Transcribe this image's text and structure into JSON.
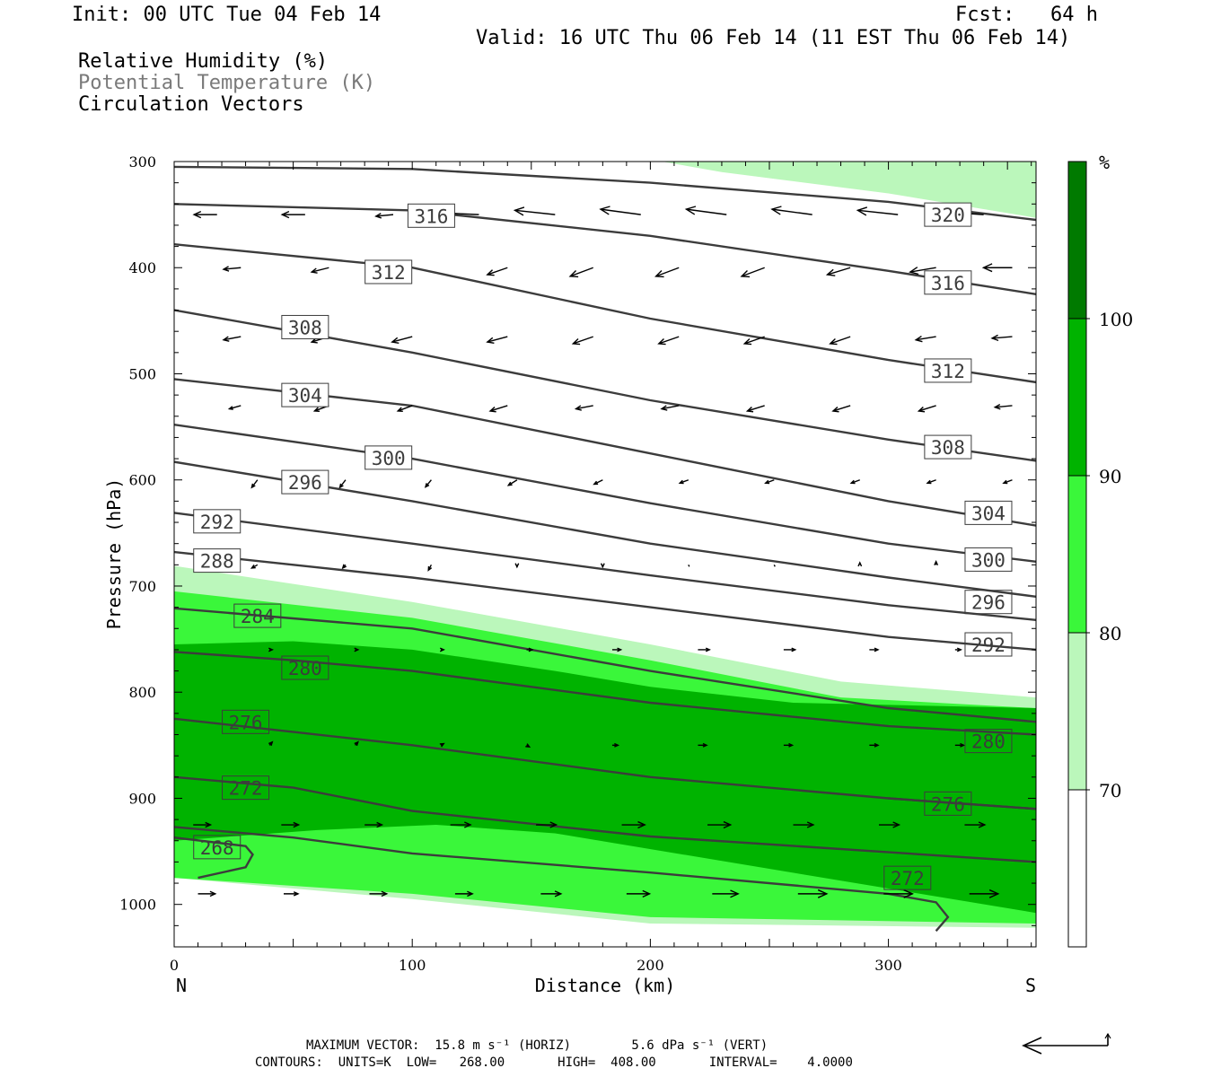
{
  "header": {
    "init": "Init: 00 UTC Tue 04 Feb 14",
    "fcst": "Fcst:   64 h",
    "valid": "Valid: 16 UTC Thu 06 Feb 14 (11 EST Thu 06 Feb 14)",
    "fields": [
      "Relative Humidity (%)",
      "Potential Temperature (K)",
      "Circulation Vectors"
    ]
  },
  "footer": {
    "max_vector": "MAXIMUM VECTOR:  15.8 m s⁻¹ (HORIZ)        5.6 dPa s⁻¹ (VERT)",
    "contours": "CONTOURS:  UNITS=K  LOW=   268.00       HIGH=  408.00       INTERVAL=    4.0000"
  },
  "chart_data": {
    "type": "cross-section",
    "xlabel": "Distance (km)",
    "ylabel": "Pressure (hPa)",
    "xlim": [
      0,
      362
    ],
    "ylim": [
      1040,
      300
    ],
    "x_ticks": [
      0,
      100,
      200,
      300
    ],
    "y_ticks": [
      300,
      400,
      500,
      600,
      700,
      800,
      900,
      1000
    ],
    "x_end_labels": {
      "left": "N",
      "right": "S"
    },
    "colorbar": {
      "unit": "%",
      "levels": [
        70,
        80,
        90,
        100
      ],
      "colors": [
        "#ffffff",
        "#bbf7bb",
        "#3af73a",
        "#00b300",
        "#007a00"
      ]
    },
    "rh_bands": [
      {
        "min_rh": 70,
        "color": "#bbf7bb",
        "top": [
          [
            0,
            681
          ],
          [
            100,
            715
          ],
          [
            200,
            755
          ],
          [
            280,
            790
          ],
          [
            362,
            805
          ]
        ],
        "bottom": [
          [
            0,
            975
          ],
          [
            100,
            995
          ],
          [
            200,
            1018
          ],
          [
            362,
            1022
          ]
        ],
        "upper_region": {
          "x": [
            205,
            362
          ],
          "top": 300,
          "bottom": [
            [
              205,
              300
            ],
            [
              230,
              310
            ],
            [
              300,
              330
            ],
            [
              362,
              353
            ]
          ]
        }
      },
      {
        "min_rh": 80,
        "color": "#3af73a",
        "top": [
          [
            0,
            705
          ],
          [
            100,
            730
          ],
          [
            200,
            770
          ],
          [
            280,
            805
          ],
          [
            362,
            815
          ]
        ],
        "bottom": [
          [
            0,
            975
          ],
          [
            100,
            990
          ],
          [
            200,
            1012
          ],
          [
            362,
            1018
          ]
        ]
      },
      {
        "min_rh": 90,
        "color": "#00b300",
        "top": [
          [
            0,
            755
          ],
          [
            50,
            752
          ],
          [
            100,
            760
          ],
          [
            160,
            780
          ],
          [
            200,
            795
          ],
          [
            260,
            810
          ],
          [
            362,
            815
          ]
        ],
        "bottom": [
          [
            0,
            940
          ],
          [
            60,
            930
          ],
          [
            110,
            925
          ],
          [
            160,
            933
          ],
          [
            362,
            1008
          ]
        ]
      }
    ],
    "theta_contours": [
      {
        "theta": 268,
        "points": [
          [
            10,
            975
          ],
          [
            30,
            965
          ],
          [
            33,
            953
          ],
          [
            30,
            945
          ],
          [
            0,
            937
          ]
        ],
        "label_at": [
          18,
          946
        ]
      },
      {
        "theta": 272,
        "points": [
          [
            0,
            927
          ],
          [
            50,
            937
          ],
          [
            100,
            952
          ],
          [
            200,
            970
          ],
          [
            300,
            990
          ],
          [
            320,
            998
          ],
          [
            325,
            1012
          ],
          [
            320,
            1025
          ]
        ],
        "label_at": [
          308,
          975
        ]
      },
      {
        "theta": 272,
        "points": [
          [
            0,
            880
          ],
          [
            50,
            890
          ],
          [
            100,
            912
          ],
          [
            200,
            936
          ],
          [
            362,
            960
          ]
        ],
        "label_at": [
          30,
          890
        ]
      },
      {
        "theta": 276,
        "points": [
          [
            0,
            825
          ],
          [
            100,
            850
          ],
          [
            200,
            880
          ],
          [
            300,
            900
          ],
          [
            362,
            910
          ]
        ],
        "label_at": [
          30,
          828
        ]
      },
      {
        "theta": 276,
        "points": [
          [
            300,
            900
          ],
          [
            362,
            910
          ]
        ],
        "label_at": [
          325,
          905
        ]
      },
      {
        "theta": 280,
        "points": [
          [
            0,
            762
          ],
          [
            50,
            770
          ],
          [
            100,
            780
          ],
          [
            200,
            810
          ],
          [
            300,
            832
          ],
          [
            362,
            840
          ]
        ],
        "label_at": [
          55,
          777
        ]
      },
      {
        "theta": 284,
        "points": [
          [
            0,
            721
          ],
          [
            100,
            740
          ],
          [
            200,
            780
          ],
          [
            300,
            815
          ],
          [
            362,
            828
          ]
        ],
        "label_at": [
          35,
          728
        ]
      },
      {
        "theta": 288,
        "points": [
          [
            0,
            668
          ],
          [
            100,
            692
          ],
          [
            200,
            720
          ],
          [
            300,
            748
          ],
          [
            362,
            760
          ]
        ],
        "label_at": [
          18,
          676
        ]
      },
      {
        "theta": 292,
        "points": [
          [
            0,
            631
          ],
          [
            100,
            660
          ],
          [
            200,
            690
          ],
          [
            300,
            718
          ],
          [
            362,
            732
          ]
        ],
        "label_at": [
          18,
          639
        ]
      },
      {
        "theta": 296,
        "points": [
          [
            0,
            583
          ],
          [
            100,
            620
          ],
          [
            200,
            660
          ],
          [
            300,
            692
          ],
          [
            362,
            710
          ]
        ],
        "label_at": [
          55,
          602
        ]
      },
      {
        "theta": 300,
        "points": [
          [
            0,
            548
          ],
          [
            100,
            580
          ],
          [
            200,
            622
          ],
          [
            300,
            660
          ],
          [
            362,
            677
          ]
        ],
        "label_at": [
          90,
          579
        ]
      },
      {
        "theta": 304,
        "points": [
          [
            0,
            505
          ],
          [
            100,
            530
          ],
          [
            200,
            575
          ],
          [
            300,
            620
          ],
          [
            362,
            643
          ]
        ],
        "label_at": [
          55,
          520
        ]
      },
      {
        "theta": 308,
        "points": [
          [
            0,
            440
          ],
          [
            100,
            480
          ],
          [
            200,
            525
          ],
          [
            300,
            562
          ],
          [
            362,
            582
          ]
        ],
        "label_at": [
          55,
          456
        ]
      },
      {
        "theta": 312,
        "points": [
          [
            0,
            378
          ],
          [
            100,
            400
          ],
          [
            200,
            448
          ],
          [
            300,
            487
          ],
          [
            362,
            508
          ]
        ],
        "label_at": [
          90,
          404
        ]
      },
      {
        "theta": 316,
        "points": [
          [
            0,
            340
          ],
          [
            100,
            346
          ],
          [
            200,
            370
          ],
          [
            300,
            403
          ],
          [
            362,
            425
          ]
        ],
        "label_at": [
          108,
          351
        ]
      },
      {
        "theta": 320,
        "points": [
          [
            0,
            305
          ],
          [
            100,
            307
          ],
          [
            200,
            320
          ],
          [
            300,
            338
          ],
          [
            362,
            355
          ]
        ],
        "label_at": [
          325,
          350
        ]
      }
    ],
    "contour_labels": [
      {
        "text": "316",
        "x": 108,
        "p": 351
      },
      {
        "text": "320",
        "x": 325,
        "p": 350
      },
      {
        "text": "312",
        "x": 90,
        "p": 404
      },
      {
        "text": "316",
        "x": 325,
        "p": 414
      },
      {
        "text": "308",
        "x": 55,
        "p": 456
      },
      {
        "text": "312",
        "x": 325,
        "p": 497
      },
      {
        "text": "304",
        "x": 55,
        "p": 520
      },
      {
        "text": "308",
        "x": 325,
        "p": 569
      },
      {
        "text": "300",
        "x": 90,
        "p": 579
      },
      {
        "text": "296",
        "x": 55,
        "p": 602
      },
      {
        "text": "304",
        "x": 342,
        "p": 631
      },
      {
        "text": "292",
        "x": 18,
        "p": 639
      },
      {
        "text": "300",
        "x": 342,
        "p": 675
      },
      {
        "text": "288",
        "x": 18,
        "p": 676
      },
      {
        "text": "296",
        "x": 342,
        "p": 715
      },
      {
        "text": "284",
        "x": 35,
        "p": 728
      },
      {
        "text": "292",
        "x": 342,
        "p": 755
      },
      {
        "text": "280",
        "x": 55,
        "p": 777
      },
      {
        "text": "276",
        "x": 30,
        "p": 828
      },
      {
        "text": "280",
        "x": 342,
        "p": 846
      },
      {
        "text": "272",
        "x": 30,
        "p": 890
      },
      {
        "text": "276",
        "x": 325,
        "p": 905
      },
      {
        "text": "268",
        "x": 18,
        "p": 946
      },
      {
        "text": "272",
        "x": 308,
        "p": 975
      }
    ],
    "vector_rows": [
      {
        "p": 350,
        "x": [
          18,
          55,
          92,
          128,
          160,
          196,
          232,
          268,
          304,
          340
        ],
        "u": [
          -8,
          -8,
          -6,
          -12,
          -14,
          -14,
          -14,
          -14,
          -14,
          -14
        ],
        "w": [
          0,
          0,
          -0.3,
          0.3,
          0.8,
          1,
          1,
          1,
          0.8,
          0.5
        ]
      },
      {
        "p": 400,
        "x": [
          28,
          65,
          100,
          140,
          176,
          212,
          248,
          284,
          320,
          352
        ],
        "u": [
          -6,
          -6,
          -6,
          -7,
          -8,
          -8,
          -8,
          -8,
          -9,
          -10
        ],
        "w": [
          -0.3,
          -0.8,
          -1,
          -1.3,
          -1.6,
          -1.6,
          -1.6,
          -1.3,
          -0.8,
          0
        ]
      },
      {
        "p": 465,
        "x": [
          28,
          65,
          100,
          140,
          176,
          212,
          248,
          284,
          320,
          352
        ],
        "u": [
          -6,
          -6,
          -7,
          -7,
          -7,
          -7,
          -7,
          -7,
          -7,
          -7
        ],
        "w": [
          -0.6,
          -1,
          -1,
          -1,
          -1.3,
          -1.3,
          -1.3,
          -1.3,
          -0.6,
          -0.3
        ]
      },
      {
        "p": 530,
        "x": [
          28,
          65,
          100,
          140,
          176,
          212,
          248,
          284,
          320,
          352
        ],
        "u": [
          -4,
          -5,
          -5,
          -6,
          -6,
          -6,
          -6,
          -6,
          -6,
          -6
        ],
        "w": [
          -0.6,
          -1,
          -1,
          -1,
          -0.6,
          -0.6,
          -1,
          -1,
          -1,
          -0.3
        ]
      },
      {
        "p": 600,
        "x": [
          35,
          72,
          108,
          144,
          180,
          216,
          252,
          288,
          320,
          352
        ],
        "u": [
          -2,
          -2,
          -2,
          -3,
          -3,
          -3,
          -3,
          -3,
          -3,
          -3
        ],
        "w": [
          -1.4,
          -1.4,
          -1.3,
          -1,
          -0.8,
          -0.6,
          -0.6,
          -0.6,
          -0.6,
          -0.6
        ]
      },
      {
        "p": 680,
        "x": [
          35,
          72,
          108,
          144,
          180,
          216,
          252,
          288,
          320
        ],
        "u": [
          -2,
          -1,
          -1,
          0,
          0,
          0,
          0,
          0,
          0
        ],
        "w": [
          -0.6,
          -0.6,
          -1,
          -0.4,
          -0.4,
          -0.2,
          0.2,
          0.4,
          0.6
        ]
      },
      {
        "p": 760,
        "x": [
          40,
          76,
          112,
          148,
          184,
          220,
          256,
          292,
          328
        ],
        "u": [
          1,
          1,
          1,
          2,
          3,
          4,
          4,
          3,
          2
        ],
        "w": [
          0,
          0,
          0,
          0,
          0,
          0,
          0,
          0,
          0
        ]
      },
      {
        "p": 850,
        "x": [
          40,
          76,
          112,
          148,
          184,
          220,
          256,
          292,
          328
        ],
        "u": [
          1,
          1,
          1,
          1,
          2,
          3,
          3,
          3,
          3
        ],
        "w": [
          0.6,
          0.6,
          0.3,
          -0.3,
          0,
          0,
          0,
          0,
          0
        ]
      },
      {
        "p": 925,
        "x": [
          8,
          45,
          80,
          116,
          152,
          188,
          224,
          260,
          296,
          332
        ],
        "u": [
          6,
          6,
          6,
          7,
          7,
          8,
          8,
          7,
          7,
          7
        ],
        "w": [
          0,
          0,
          0,
          0,
          0,
          0,
          0,
          0,
          0,
          0
        ]
      },
      {
        "p": 990,
        "x": [
          10,
          46,
          82,
          118,
          154,
          190,
          226,
          262,
          298,
          334
        ],
        "u": [
          6,
          5,
          6,
          6,
          7,
          8,
          9,
          10,
          10,
          10
        ],
        "w": [
          0,
          0,
          0,
          0,
          0,
          0,
          0,
          0,
          0,
          0
        ]
      }
    ],
    "reference_vector": {
      "horiz": 15.8,
      "vert": 5.6
    }
  }
}
